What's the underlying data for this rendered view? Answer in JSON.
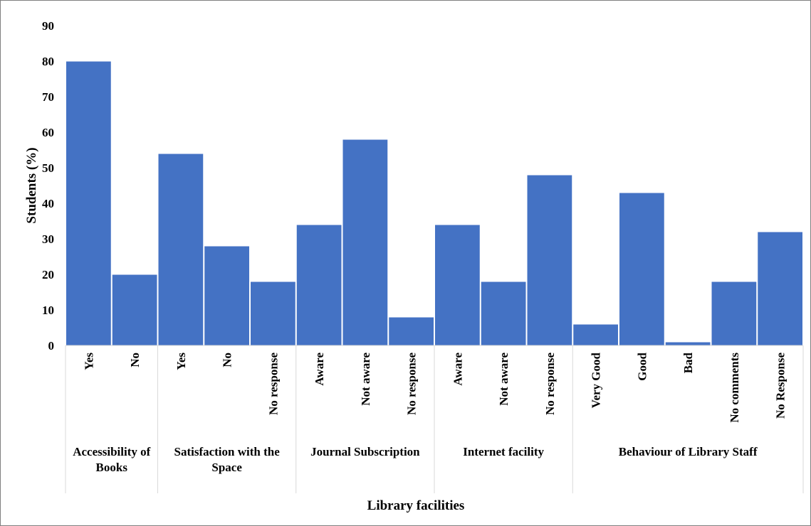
{
  "chart_data": {
    "type": "bar",
    "ylabel": "Students (%)",
    "xlabel": "Library facilities",
    "ylim": [
      0,
      90
    ],
    "yticks": [
      0,
      10,
      20,
      30,
      40,
      50,
      60,
      70,
      80,
      90
    ],
    "grid": false,
    "bar_color": "#4472c4",
    "groups": [
      {
        "label_lines": [
          "Accessibility of",
          "Books"
        ],
        "categories": [
          "Yes",
          "No"
        ],
        "values": [
          80,
          20
        ]
      },
      {
        "label_lines": [
          "Satisfaction with the",
          "Space"
        ],
        "categories": [
          "Yes",
          "No",
          "No response"
        ],
        "values": [
          54,
          28,
          18
        ]
      },
      {
        "label_lines": [
          "Journal Subscription"
        ],
        "categories": [
          "Aware",
          "Not aware",
          "No response"
        ],
        "values": [
          34,
          58,
          8
        ]
      },
      {
        "label_lines": [
          "Internet facility"
        ],
        "categories": [
          "Aware",
          "Not aware",
          "No response"
        ],
        "values": [
          34,
          18,
          48
        ]
      },
      {
        "label_lines": [
          "Behaviour of Library Staff"
        ],
        "categories": [
          "Very Good",
          "Good",
          "Bad",
          "No comments",
          "No Response"
        ],
        "values": [
          6,
          43,
          1,
          18,
          32
        ]
      }
    ]
  }
}
